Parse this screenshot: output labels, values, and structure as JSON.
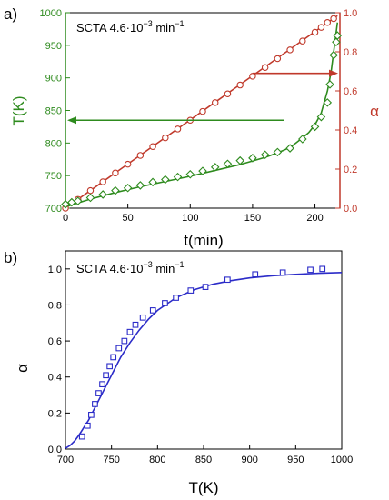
{
  "chart_data": [
    {
      "panel": "a)",
      "type": "line",
      "annotation": {
        "prefix": "SCTA 4.6·10",
        "exponent": "−3",
        "suffix": " min",
        "suffix_exponent": "−1"
      },
      "xlabel": "t(min)",
      "ylabel_left": "T(K)",
      "ylabel_right": "α",
      "xlim": [
        0,
        220
      ],
      "ylim_left": [
        700,
        1000
      ],
      "ylim_right": [
        0,
        1.0
      ],
      "xticks": [
        0,
        50,
        100,
        150,
        200
      ],
      "yticks_left": [
        700,
        750,
        800,
        850,
        900,
        950,
        1000
      ],
      "yticks_right": [
        0.0,
        0.2,
        0.4,
        0.6,
        0.8,
        1.0
      ],
      "colors": {
        "left_axis": "#2e8b1e",
        "right_axis": "#c0392b"
      },
      "series": [
        {
          "axis": "right",
          "marker": "circle",
          "color": "#c0392b",
          "fit": "line",
          "x": [
            0,
            10,
            20,
            30,
            40,
            50,
            60,
            70,
            80,
            90,
            100,
            110,
            120,
            130,
            140,
            150,
            160,
            170,
            180,
            190,
            200,
            205,
            210,
            215
          ],
          "y": [
            0.0,
            0.045,
            0.09,
            0.135,
            0.18,
            0.225,
            0.27,
            0.315,
            0.36,
            0.405,
            0.45,
            0.495,
            0.54,
            0.585,
            0.63,
            0.675,
            0.72,
            0.765,
            0.81,
            0.855,
            0.9,
            0.925,
            0.95,
            0.97
          ],
          "fit_x": [
            0,
            218
          ],
          "fit_y": [
            0.0,
            0.985
          ]
        },
        {
          "axis": "left",
          "marker": "diamond",
          "color": "#2e8b1e",
          "fit": "curve",
          "x": [
            0,
            5,
            10,
            20,
            30,
            40,
            50,
            60,
            70,
            80,
            90,
            100,
            110,
            120,
            130,
            140,
            150,
            160,
            170,
            180,
            190,
            200,
            205,
            210,
            212,
            215,
            217,
            218
          ],
          "y": [
            706,
            709,
            711,
            716,
            721,
            727,
            731,
            735,
            740,
            744,
            748,
            752,
            757,
            763,
            768,
            773,
            777,
            782,
            786,
            792,
            806,
            825,
            840,
            862,
            890,
            935,
            955,
            965
          ],
          "fit_x": [
            0,
            10,
            20,
            40,
            60,
            80,
            100,
            120,
            140,
            160,
            170,
            180,
            190,
            195,
            200,
            205,
            210,
            213,
            216,
            218
          ],
          "fit_y": [
            702,
            708,
            714,
            724,
            733,
            741,
            749,
            758,
            767,
            778,
            785,
            793,
            808,
            816,
            828,
            846,
            880,
            910,
            955,
            985
          ]
        }
      ],
      "arrows": [
        {
          "points_to": "left",
          "from": [
            175,
            835
          ],
          "to": [
            0,
            835
          ]
        },
        {
          "points_to": "right",
          "from": [
            150,
            0.69
          ],
          "to": [
            220,
            0.69
          ]
        }
      ]
    },
    {
      "panel": "b)",
      "type": "scatter",
      "annotation": {
        "prefix": "SCTA 4.6·10",
        "exponent": "−3",
        "suffix": " min",
        "suffix_exponent": "−1"
      },
      "xlabel": "T(K)",
      "ylabel": "α",
      "xlim": [
        700,
        1000
      ],
      "ylim": [
        0,
        1.1
      ],
      "xticks": [
        700,
        750,
        800,
        850,
        900,
        950,
        1000
      ],
      "yticks": [
        0.0,
        0.2,
        0.4,
        0.6,
        0.8,
        1.0
      ],
      "color": "#2c2cc8",
      "series": [
        {
          "marker": "square",
          "x": [
            718,
            724,
            728,
            732,
            736,
            740,
            744,
            748,
            752,
            758,
            764,
            770,
            776,
            784,
            795,
            808,
            820,
            836,
            852,
            876,
            906,
            936,
            966,
            979
          ],
          "y": [
            0.07,
            0.13,
            0.19,
            0.25,
            0.31,
            0.36,
            0.41,
            0.46,
            0.51,
            0.56,
            0.6,
            0.65,
            0.69,
            0.73,
            0.77,
            0.81,
            0.84,
            0.88,
            0.9,
            0.94,
            0.97,
            0.98,
            0.995,
            1.0
          ],
          "fit_x": [
            700,
            705,
            710,
            715,
            720,
            725,
            730,
            735,
            740,
            745,
            750,
            760,
            770,
            780,
            790,
            800,
            820,
            840,
            860,
            880,
            900,
            925,
            950,
            975,
            1000
          ],
          "fit_y": [
            0.005,
            0.02,
            0.045,
            0.08,
            0.12,
            0.16,
            0.21,
            0.26,
            0.31,
            0.36,
            0.41,
            0.51,
            0.59,
            0.66,
            0.72,
            0.77,
            0.84,
            0.885,
            0.915,
            0.935,
            0.95,
            0.962,
            0.97,
            0.976,
            0.98
          ]
        }
      ]
    }
  ]
}
